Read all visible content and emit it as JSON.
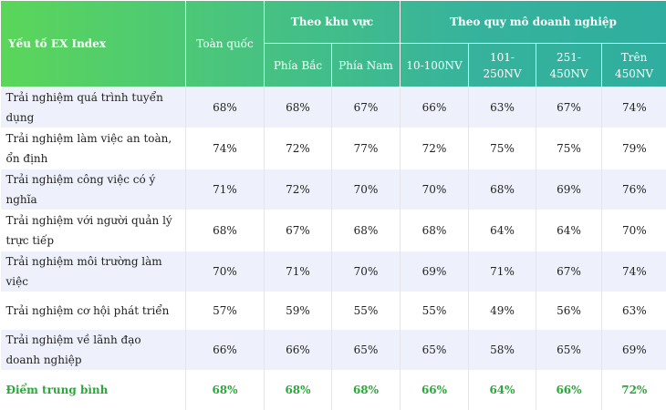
{
  "header": {
    "factor": "Yếu tố EX Index",
    "national": "Toàn quốc",
    "region_group": "Theo khu vực",
    "size_group": "Theo quy mô doanh nghiệp",
    "north": "Phía Bắc",
    "south": "Phía Nam",
    "size1": "10-100NV",
    "size2": "101-250NV",
    "size3": "251-450NV",
    "size4": "Trên 450NV"
  },
  "rows": [
    {
      "label": "Trải nghiệm quá trình tuyển dụng",
      "national": "68%",
      "north": "68%",
      "south": "67%",
      "s1": "66%",
      "s2": "63%",
      "s3": "67%",
      "s4": "74%"
    },
    {
      "label": "Trải nghiệm làm việc an toàn, ổn định",
      "national": "74%",
      "north": "72%",
      "south": "77%",
      "s1": "72%",
      "s2": "75%",
      "s3": "75%",
      "s4": "79%"
    },
    {
      "label": "Trải nghiệm công việc có ý nghĩa",
      "national": "71%",
      "north": "72%",
      "south": "70%",
      "s1": "70%",
      "s2": "68%",
      "s3": "69%",
      "s4": "76%"
    },
    {
      "label": "Trải nghiệm với người quản lý trực tiếp",
      "national": "68%",
      "north": "67%",
      "south": "68%",
      "s1": "68%",
      "s2": "64%",
      "s3": "64%",
      "s4": "70%"
    },
    {
      "label": "Trải nghiệm môi trường làm việc",
      "national": "70%",
      "north": "71%",
      "south": "70%",
      "s1": "69%",
      "s2": "71%",
      "s3": "67%",
      "s4": "74%"
    },
    {
      "label": "Trải nghiệm cơ hội phát triển",
      "national": "57%",
      "north": "59%",
      "south": "55%",
      "s1": "55%",
      "s2": "49%",
      "s3": "56%",
      "s4": "63%"
    },
    {
      "label": "Trải nghiệm về lãnh đạo doanh nghiệp",
      "national": "66%",
      "north": "66%",
      "south": "65%",
      "s1": "65%",
      "s2": "58%",
      "s3": "65%",
      "s4": "69%"
    }
  ],
  "average": {
    "label": "Điểm trung bình",
    "national": "68%",
    "north": "68%",
    "south": "68%",
    "s1": "66%",
    "s2": "64%",
    "s3": "66%",
    "s4": "72%"
  }
}
